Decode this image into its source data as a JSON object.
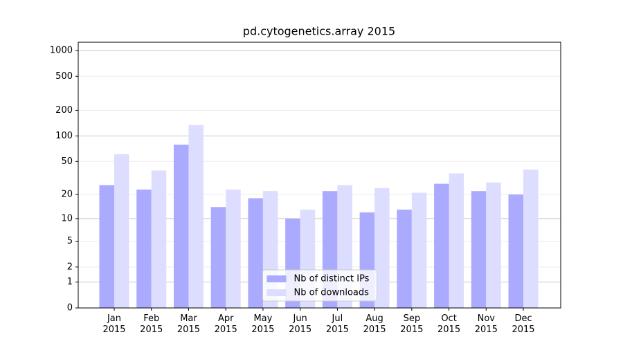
{
  "chart_data": {
    "type": "bar",
    "title": "pd.cytogenetics.array 2015",
    "categories": [
      "Jan 2015",
      "Feb 2015",
      "Mar 2015",
      "Apr 2015",
      "May 2015",
      "Jun 2015",
      "Jul 2015",
      "Aug 2015",
      "Sep 2015",
      "Oct 2015",
      "Nov 2015",
      "Dec 2015"
    ],
    "series": [
      {
        "name": "Nb of distinct IPs",
        "color": "#aaaaff",
        "values": [
          26,
          23,
          79,
          14,
          18,
          10,
          22,
          12,
          13,
          27,
          22,
          20
        ]
      },
      {
        "name": "Nb of downloads",
        "color": "#ddddff",
        "values": [
          61,
          39,
          134,
          23,
          22,
          13,
          26,
          24,
          21,
          36,
          28,
          40
        ]
      }
    ],
    "yscale": "log1p",
    "ylim": [
      0,
      1250
    ],
    "yticks": [
      0,
      1,
      2,
      5,
      10,
      20,
      50,
      100,
      200,
      500,
      1000
    ],
    "grid": true,
    "legend": "lower center"
  }
}
